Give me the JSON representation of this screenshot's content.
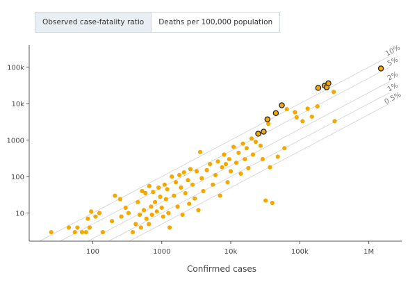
{
  "tabs": [
    {
      "label": "Observed case-fatality ratio",
      "active": true
    },
    {
      "label": "Deaths per 100,000 population",
      "active": false
    }
  ],
  "colors": {
    "point": "#f5a800",
    "point_highlight_stroke": "#222222",
    "ref_line": "#d9d9d9",
    "axis": "#555555"
  },
  "chart_data": {
    "type": "scatter",
    "x_scale": "log",
    "y_scale": "log",
    "xlabel": "Confirmed cases",
    "ylabel": "",
    "xlim": [
      12,
      3000000
    ],
    "ylim": [
      1.7,
      400000
    ],
    "x_ticks": [
      100,
      1000,
      10000,
      100000,
      1000000
    ],
    "x_tick_labels": [
      "100",
      "1000",
      "10k",
      "100k",
      "1M"
    ],
    "y_ticks": [
      10,
      100,
      1000,
      10000,
      100000
    ],
    "y_tick_labels": [
      "10",
      "100",
      "1000",
      "10k",
      "100k"
    ],
    "reference_lines": [
      {
        "ratio": 0.1,
        "label": "10%"
      },
      {
        "ratio": 0.05,
        "label": "5%"
      },
      {
        "ratio": 0.02,
        "label": "2%"
      },
      {
        "ratio": 0.01,
        "label": "1%"
      },
      {
        "ratio": 0.005,
        "label": "0.5%"
      }
    ],
    "points": [
      {
        "x": 25,
        "y": 3
      },
      {
        "x": 45,
        "y": 4
      },
      {
        "x": 55,
        "y": 3
      },
      {
        "x": 60,
        "y": 4
      },
      {
        "x": 70,
        "y": 3
      },
      {
        "x": 80,
        "y": 3
      },
      {
        "x": 85,
        "y": 7
      },
      {
        "x": 90,
        "y": 4
      },
      {
        "x": 95,
        "y": 11
      },
      {
        "x": 110,
        "y": 8
      },
      {
        "x": 125,
        "y": 10
      },
      {
        "x": 140,
        "y": 3
      },
      {
        "x": 190,
        "y": 6
      },
      {
        "x": 210,
        "y": 30
      },
      {
        "x": 250,
        "y": 24
      },
      {
        "x": 260,
        "y": 8
      },
      {
        "x": 300,
        "y": 14
      },
      {
        "x": 330,
        "y": 10
      },
      {
        "x": 380,
        "y": 3
      },
      {
        "x": 420,
        "y": 5
      },
      {
        "x": 450,
        "y": 20
      },
      {
        "x": 480,
        "y": 9
      },
      {
        "x": 500,
        "y": 4
      },
      {
        "x": 520,
        "y": 40
      },
      {
        "x": 550,
        "y": 12
      },
      {
        "x": 580,
        "y": 35
      },
      {
        "x": 600,
        "y": 7
      },
      {
        "x": 650,
        "y": 5
      },
      {
        "x": 660,
        "y": 55
      },
      {
        "x": 700,
        "y": 15
      },
      {
        "x": 720,
        "y": 9
      },
      {
        "x": 750,
        "y": 38
      },
      {
        "x": 800,
        "y": 20
      },
      {
        "x": 850,
        "y": 11
      },
      {
        "x": 900,
        "y": 50
      },
      {
        "x": 950,
        "y": 28
      },
      {
        "x": 1000,
        "y": 14
      },
      {
        "x": 1050,
        "y": 8
      },
      {
        "x": 1100,
        "y": 60
      },
      {
        "x": 1150,
        "y": 24
      },
      {
        "x": 1200,
        "y": 45
      },
      {
        "x": 1250,
        "y": 10
      },
      {
        "x": 1300,
        "y": 4
      },
      {
        "x": 1400,
        "y": 100
      },
      {
        "x": 1500,
        "y": 30
      },
      {
        "x": 1600,
        "y": 70
      },
      {
        "x": 1700,
        "y": 15
      },
      {
        "x": 1800,
        "y": 110
      },
      {
        "x": 1900,
        "y": 50
      },
      {
        "x": 2000,
        "y": 9
      },
      {
        "x": 2100,
        "y": 130
      },
      {
        "x": 2200,
        "y": 35
      },
      {
        "x": 2400,
        "y": 80
      },
      {
        "x": 2500,
        "y": 18
      },
      {
        "x": 2600,
        "y": 160
      },
      {
        "x": 2800,
        "y": 60
      },
      {
        "x": 3000,
        "y": 25
      },
      {
        "x": 3200,
        "y": 140
      },
      {
        "x": 3400,
        "y": 12
      },
      {
        "x": 3600,
        "y": 470
      },
      {
        "x": 3800,
        "y": 90
      },
      {
        "x": 4000,
        "y": 40
      },
      {
        "x": 4500,
        "y": 150
      },
      {
        "x": 5000,
        "y": 220
      },
      {
        "x": 5500,
        "y": 60
      },
      {
        "x": 6000,
        "y": 110
      },
      {
        "x": 6500,
        "y": 260
      },
      {
        "x": 7000,
        "y": 30
      },
      {
        "x": 7500,
        "y": 180
      },
      {
        "x": 8000,
        "y": 400
      },
      {
        "x": 8500,
        "y": 220
      },
      {
        "x": 9000,
        "y": 70
      },
      {
        "x": 9500,
        "y": 300
      },
      {
        "x": 10000,
        "y": 140
      },
      {
        "x": 11000,
        "y": 650
      },
      {
        "x": 12000,
        "y": 240
      },
      {
        "x": 13000,
        "y": 450
      },
      {
        "x": 14000,
        "y": 120
      },
      {
        "x": 15000,
        "y": 800
      },
      {
        "x": 16000,
        "y": 300
      },
      {
        "x": 17000,
        "y": 600
      },
      {
        "x": 18000,
        "y": 170
      },
      {
        "x": 20000,
        "y": 1100
      },
      {
        "x": 21000,
        "y": 400
      },
      {
        "x": 23000,
        "y": 900
      },
      {
        "x": 25000,
        "y": 1500,
        "highlight": true
      },
      {
        "x": 27000,
        "y": 700
      },
      {
        "x": 29000,
        "y": 300
      },
      {
        "x": 30000,
        "y": 1700,
        "highlight": true
      },
      {
        "x": 32000,
        "y": 22
      },
      {
        "x": 34000,
        "y": 3700,
        "highlight": true
      },
      {
        "x": 35000,
        "y": 2800
      },
      {
        "x": 37000,
        "y": 180
      },
      {
        "x": 40000,
        "y": 19
      },
      {
        "x": 45000,
        "y": 5500,
        "highlight": true
      },
      {
        "x": 48000,
        "y": 350
      },
      {
        "x": 55000,
        "y": 9000,
        "highlight": true
      },
      {
        "x": 60000,
        "y": 600
      },
      {
        "x": 65000,
        "y": 7000
      },
      {
        "x": 85000,
        "y": 5800
      },
      {
        "x": 90000,
        "y": 4200
      },
      {
        "x": 110000,
        "y": 3300
      },
      {
        "x": 130000,
        "y": 7300
      },
      {
        "x": 150000,
        "y": 4400
      },
      {
        "x": 180000,
        "y": 8400
      },
      {
        "x": 185000,
        "y": 27000,
        "highlight": true
      },
      {
        "x": 230000,
        "y": 31000,
        "highlight": true
      },
      {
        "x": 245000,
        "y": 28000,
        "highlight": true
      },
      {
        "x": 260000,
        "y": 36000,
        "highlight": true
      },
      {
        "x": 310000,
        "y": 21000
      },
      {
        "x": 320000,
        "y": 3300
      },
      {
        "x": 1500000,
        "y": 92000,
        "highlight": true
      }
    ]
  }
}
